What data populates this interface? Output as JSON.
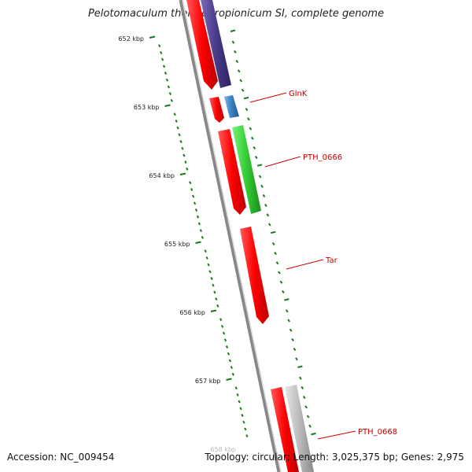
{
  "title": "Pelotomaculum thermopropionicum SI, complete genome",
  "footer": {
    "accession": "Accession: NC_009454",
    "summary": "Topology: circular; Length: 3,025,375 bp; Genes: 2,975"
  },
  "ruler": {
    "labels": [
      "652 kbp",
      "653 kbp",
      "654 kbp",
      "655 kbp",
      "656 kbp",
      "657 kbp",
      "658 kbp"
    ]
  },
  "genes": [
    {
      "name": "GlnK",
      "color": "#3a7fc1"
    },
    {
      "name": "PTH_0666",
      "color": "#33cc33"
    },
    {
      "name": "Tar",
      "color": "#ff0000"
    },
    {
      "name": "PTH_0668",
      "color": "#bbbbbb"
    }
  ],
  "colors": {
    "cds": "#ff0000",
    "upper_gene": "#4a3a8a",
    "backbone": "#888888",
    "tick": "#1a7a1a",
    "label": "#cc0000"
  }
}
